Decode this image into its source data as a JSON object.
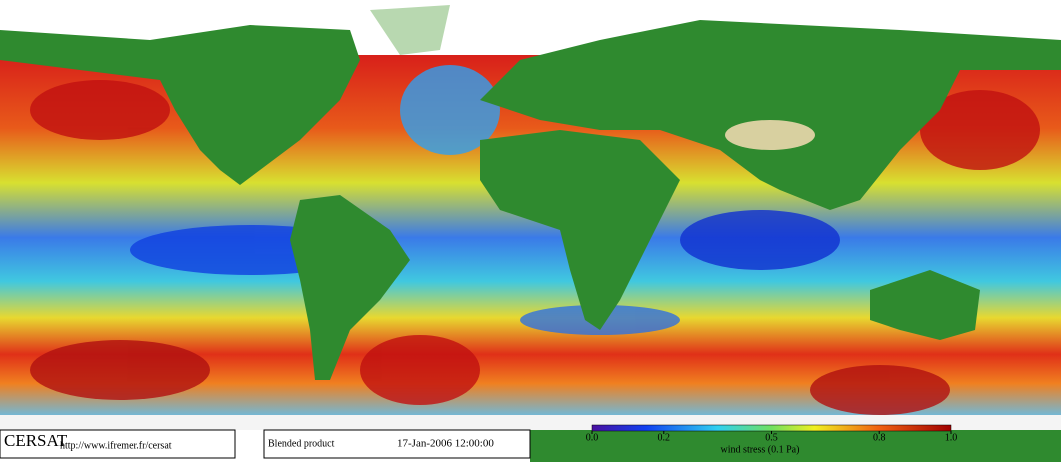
{
  "footer": {
    "logo": "CERSAT",
    "url": "http://www.ifremer.fr/cersat",
    "product": "Blended product",
    "date": "17-Jan-2006 12:00:00"
  },
  "colorbar": {
    "label": "wind stress (0.1 Pa)",
    "lim": [
      0,
      1
    ],
    "ticks": [
      {
        "value": 0,
        "label": "0.0"
      },
      0.2,
      0.5,
      0.8,
      {
        "value": 1,
        "label": "1.0"
      }
    ]
  }
}
